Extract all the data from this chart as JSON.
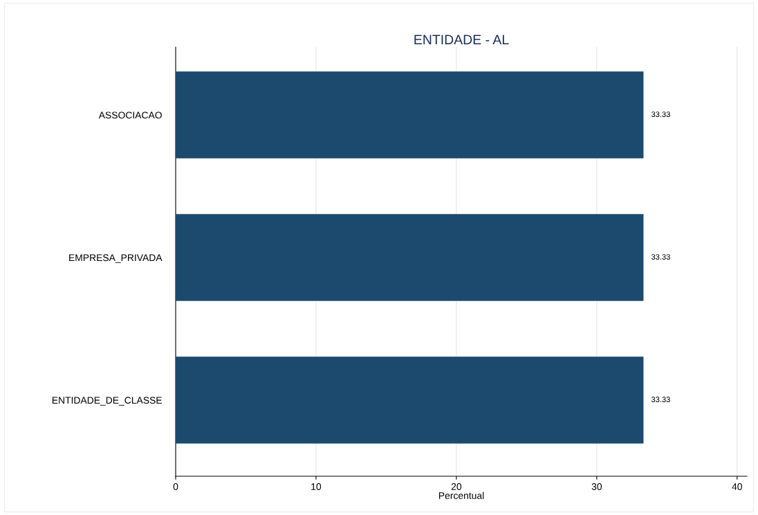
{
  "chart_data": {
    "type": "bar",
    "orientation": "horizontal",
    "title": "ENTIDADE - AL",
    "xlabel": "Percentual",
    "categories": [
      "ASSOCIACAO",
      "EMPRESA_PRIVADA",
      "ENTIDADE_DE_CLASSE"
    ],
    "values": [
      33.33,
      33.33,
      33.33
    ],
    "color": "#1c4a6e",
    "data_labels": true,
    "xlim": [
      0,
      40.7
    ],
    "xticks": [
      0,
      10,
      20,
      30,
      40
    ],
    "grid": "x",
    "legend": false
  }
}
